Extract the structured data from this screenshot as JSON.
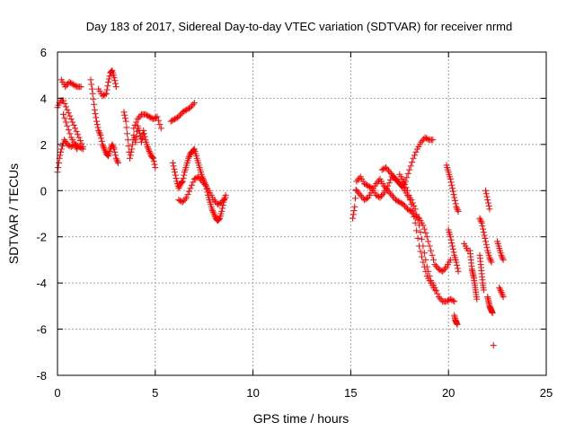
{
  "chart_data": {
    "type": "scatter",
    "title": "Day 183 of 2017, Sidereal Day-to-day VTEC variation (SDTVAR) for receiver nrmd",
    "xlabel": "GPS time / hours",
    "ylabel": "SDTVAR / TECUs",
    "xlim": [
      0,
      25
    ],
    "ylim": [
      -8,
      6
    ],
    "xticks": [
      0,
      5,
      10,
      15,
      20,
      25
    ],
    "yticks": [
      -8,
      -6,
      -4,
      -2,
      0,
      2,
      4,
      6
    ],
    "grid": true,
    "marker": "plus",
    "color": "#ff0000",
    "segments": [
      {
        "x": [
          0.0,
          0.1,
          0.2,
          0.35,
          0.5,
          0.7,
          0.9,
          1.1,
          1.3
        ],
        "y": [
          0.8,
          1.4,
          1.8,
          2.2,
          2.0,
          1.9,
          2.0,
          1.9,
          1.8
        ]
      },
      {
        "x": [
          0.0,
          0.15,
          0.3,
          0.5,
          0.7,
          0.9,
          1.1,
          1.3
        ],
        "y": [
          3.6,
          3.9,
          3.9,
          3.5,
          3.1,
          2.7,
          2.3,
          1.9
        ]
      },
      {
        "x": [
          0.2,
          0.4,
          0.6,
          0.8,
          1.0,
          1.2
        ],
        "y": [
          4.8,
          4.5,
          4.7,
          4.6,
          4.5,
          4.5
        ]
      },
      {
        "x": [
          0.3,
          0.5,
          0.7,
          0.9,
          1.0
        ],
        "y": [
          3.3,
          2.8,
          2.3,
          2.0,
          1.8
        ]
      },
      {
        "x": [
          1.7,
          1.8,
          1.9,
          2.0,
          2.1,
          2.2,
          2.3,
          2.4,
          2.5,
          2.6,
          2.7,
          2.8,
          2.9,
          3.0,
          3.1
        ],
        "y": [
          4.8,
          4.2,
          3.5,
          3.0,
          2.6,
          2.4,
          2.0,
          1.8,
          1.6,
          1.5,
          1.8,
          2.0,
          1.8,
          1.4,
          1.2
        ]
      },
      {
        "x": [
          2.1,
          2.3,
          2.5,
          2.6,
          2.7,
          2.8,
          2.9,
          3.0
        ],
        "y": [
          4.4,
          4.1,
          4.2,
          4.7,
          5.1,
          5.2,
          4.9,
          4.5
        ]
      },
      {
        "x": [
          3.4,
          3.5,
          3.6,
          3.7,
          3.8,
          3.9,
          4.0,
          4.1,
          4.2,
          4.3,
          4.4,
          4.5,
          4.6,
          4.7,
          4.8,
          4.9,
          5.0
        ],
        "y": [
          3.4,
          3.0,
          2.2,
          1.4,
          1.8,
          2.4,
          2.1,
          2.8,
          2.5,
          2.1,
          2.6,
          2.2,
          1.9,
          1.7,
          1.5,
          1.4,
          1.0
        ]
      },
      {
        "x": [
          3.9,
          4.1,
          4.3,
          4.5,
          4.7,
          4.9,
          5.1,
          5.3
        ],
        "y": [
          2.7,
          3.1,
          3.3,
          3.3,
          3.2,
          3.1,
          3.2,
          2.7
        ]
      },
      {
        "x": [
          5.8,
          6.0,
          6.2,
          6.4,
          6.6,
          6.8,
          7.0
        ],
        "y": [
          3.0,
          3.1,
          3.2,
          3.4,
          3.5,
          3.6,
          3.8
        ]
      },
      {
        "x": [
          5.9,
          6.0,
          6.1,
          6.2,
          6.3,
          6.4,
          6.5,
          6.6,
          6.7,
          6.8,
          6.9,
          7.0,
          7.1,
          7.2,
          7.3,
          7.4,
          7.5,
          7.6,
          7.7,
          7.8,
          7.9,
          8.0,
          8.1,
          8.2,
          8.3,
          8.4,
          8.5,
          8.6
        ],
        "y": [
          1.2,
          0.8,
          0.4,
          0.1,
          0.3,
          0.4,
          0.8,
          1.1,
          1.4,
          1.6,
          1.7,
          1.8,
          1.5,
          1.2,
          0.9,
          0.6,
          0.4,
          0.2,
          -0.2,
          -0.5,
          -0.8,
          -1.0,
          -1.2,
          -1.3,
          -1.2,
          -0.9,
          -0.5,
          -0.2
        ]
      },
      {
        "x": [
          6.2,
          6.4,
          6.6,
          6.8,
          7.0,
          7.2,
          7.4,
          7.6,
          7.8,
          8.0,
          8.2,
          8.4,
          8.6
        ],
        "y": [
          -0.4,
          -0.5,
          -0.3,
          0.1,
          0.5,
          0.6,
          0.4,
          0.2,
          -0.1,
          -0.4,
          -0.6,
          -0.5,
          -0.3
        ]
      },
      {
        "x": [
          15.1,
          15.2,
          15.3,
          15.5,
          15.7,
          15.9,
          16.1,
          16.3,
          16.5,
          16.7,
          16.9,
          17.1,
          17.3,
          17.5,
          17.7,
          17.9,
          18.1,
          18.3,
          18.5,
          18.7,
          18.9,
          19.1,
          19.3,
          19.5,
          19.7,
          19.9,
          20.1,
          20.3
        ],
        "y": [
          -1.2,
          -0.7,
          0.4,
          0.6,
          0.3,
          0.2,
          0.1,
          -0.2,
          -0.3,
          -0.1,
          0.2,
          0.6,
          0.5,
          0.3,
          0.1,
          -0.2,
          -0.4,
          -0.8,
          -1.5,
          -2.4,
          -3.3,
          -3.9,
          -4.2,
          -4.6,
          -4.8,
          -4.8,
          -4.7,
          -4.8
        ]
      },
      {
        "x": [
          15.3,
          15.5,
          15.7,
          15.9,
          16.1,
          16.3,
          16.5,
          16.7,
          16.9,
          17.1,
          17.3,
          17.5,
          17.7,
          17.9,
          18.1,
          18.3,
          18.5,
          18.7,
          18.9,
          19.1,
          19.3,
          19.5,
          19.7,
          19.9,
          20.1
        ],
        "y": [
          0.0,
          -0.2,
          -0.4,
          -0.3,
          0.0,
          0.3,
          0.5,
          0.2,
          0.0,
          -0.2,
          -0.4,
          -0.5,
          -0.6,
          -0.8,
          -0.9,
          -1.1,
          -1.2,
          -1.5,
          -2.0,
          -2.6,
          -3.2,
          -3.4,
          -3.5,
          -3.3,
          -3.0
        ]
      },
      {
        "x": [
          16.6,
          16.8,
          17.0,
          17.2,
          17.4,
          17.6,
          17.8,
          18.0,
          18.2,
          18.4,
          18.6,
          18.8,
          19.0,
          19.2
        ],
        "y": [
          0.9,
          1.0,
          0.8,
          0.6,
          0.4,
          0.2,
          0.4,
          0.9,
          1.4,
          1.8,
          2.1,
          2.3,
          2.2,
          2.2
        ]
      },
      {
        "x": [
          17.5,
          17.7,
          17.9,
          18.1,
          18.3,
          18.5,
          18.7,
          18.9,
          19.1,
          19.3
        ],
        "y": [
          0.7,
          0.4,
          0.0,
          -0.6,
          -1.4,
          -2.4,
          -3.1,
          -3.7,
          -4.0,
          -4.3
        ]
      },
      {
        "x": [
          19.9,
          20.0,
          20.1,
          20.2,
          20.3,
          20.4,
          20.5
        ],
        "y": [
          1.1,
          0.8,
          0.5,
          0.1,
          -0.3,
          -0.7,
          -0.9
        ]
      },
      {
        "x": [
          20.0,
          20.1,
          20.2,
          20.3,
          20.4,
          20.5
        ],
        "y": [
          -1.7,
          -2.0,
          -2.4,
          -2.8,
          -3.1,
          -3.5
        ]
      },
      {
        "x": [
          20.3,
          20.35,
          20.4,
          20.45
        ],
        "y": [
          -5.4,
          -5.6,
          -5.7,
          -5.8
        ]
      },
      {
        "x": [
          21.1,
          21.15,
          21.2,
          21.25,
          21.3,
          21.35,
          21.4,
          21.45
        ],
        "y": [
          -2.6,
          -3.0,
          -3.4,
          -3.6,
          -3.8,
          -4.1,
          -4.4,
          -4.7
        ]
      },
      {
        "x": [
          21.6,
          21.65,
          21.7,
          21.75,
          21.8
        ],
        "y": [
          -2.8,
          -3.2,
          -3.6,
          -4.0,
          -4.3
        ]
      },
      {
        "x": [
          21.6,
          21.7,
          21.8,
          21.9,
          22.0,
          22.1,
          22.2
        ],
        "y": [
          -1.2,
          -1.4,
          -1.8,
          -2.2,
          -2.6,
          -2.9,
          -3.1
        ]
      },
      {
        "x": [
          21.9,
          22.0,
          22.1
        ],
        "y": [
          0.0,
          -0.4,
          -0.8
        ]
      },
      {
        "x": [
          22.0,
          22.05,
          22.1,
          22.15,
          22.2,
          22.25
        ],
        "y": [
          -4.6,
          -4.8,
          -5.0,
          -5.1,
          -5.2,
          -5.3
        ]
      },
      {
        "x": [
          22.5,
          22.6,
          22.7,
          22.8
        ],
        "y": [
          -2.2,
          -2.5,
          -2.8,
          -3.0
        ]
      },
      {
        "x": [
          22.6,
          22.7,
          22.8
        ],
        "y": [
          -4.2,
          -4.4,
          -4.6
        ]
      },
      {
        "x": [
          22.3
        ],
        "y": [
          -6.7
        ]
      },
      {
        "x": [
          20.8,
          21.0
        ],
        "y": [
          -2.3,
          -2.6
        ]
      }
    ]
  }
}
